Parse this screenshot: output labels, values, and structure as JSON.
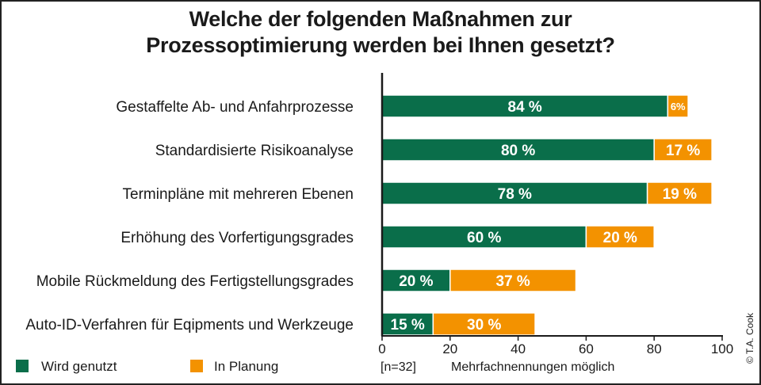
{
  "chart_data": {
    "type": "bar",
    "stacked": true,
    "orientation": "horizontal",
    "title": "Welche der folgenden Maßnahmen zur Prozessoptimierung werden bei Ihnen gesetzt?",
    "title_lines": [
      "Welche der folgenden Maßnahmen zur",
      "Prozessoptimierung werden bei Ihnen gesetzt?"
    ],
    "categories": [
      "Gestaffelte Ab- und Anfahrprozesse",
      "Standardisierte Risikoanalyse",
      "Terminpläne mit mehreren Ebenen",
      "Erhöhung des Vorfertigungsgrades",
      "Mobile Rückmeldung des Fertigstellungsgrades",
      "Auto-ID-Verfahren für Eqipments und Werkzeuge"
    ],
    "series": [
      {
        "name": "Wird genutzt",
        "color": "#0a6e4a",
        "values": [
          84,
          80,
          78,
          60,
          20,
          15
        ],
        "labels": [
          "84 %",
          "80 %",
          "78 %",
          "60 %",
          "20 %",
          "15 %"
        ]
      },
      {
        "name": "In Planung",
        "color": "#f39200",
        "values": [
          6,
          17,
          19,
          20,
          37,
          30
        ],
        "labels": [
          "6%",
          "17 %",
          "19 %",
          "20 %",
          "37 %",
          "30 %"
        ]
      }
    ],
    "xlim": [
      0,
      100
    ],
    "xticks": [
      0,
      20,
      40,
      60,
      80,
      100
    ],
    "xlabel": "",
    "ylabel": "",
    "grid": false,
    "legend": "bottom-left",
    "notes": {
      "sample": "[n=32]",
      "multiple": "Mehrfachnennungen möglich",
      "copyright": "© T.A. Cook"
    }
  }
}
